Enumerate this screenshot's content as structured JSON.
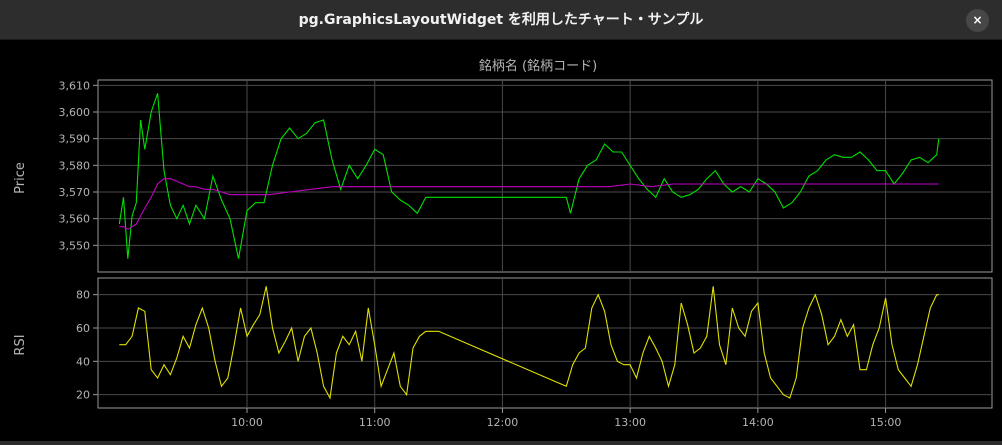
{
  "window": {
    "title": "pg.GraphicsLayoutWidget を利用したチャート・サンプル",
    "close_icon": "×"
  },
  "colors": {
    "background": "#000000",
    "price": "#00e000",
    "sma": "#c000c0",
    "rsi": "#e0e000",
    "grid": "#4a4a4a",
    "axis": "#9a9a9a"
  },
  "chart_data": [
    {
      "type": "line",
      "title": "銘柄名 (銘柄コード)",
      "ylabel": "Price",
      "ylim": [
        3540,
        3612
      ],
      "yticks": [
        "3,550",
        "3,560",
        "3,570",
        "3,580",
        "3,590",
        "3,600",
        "3,610"
      ],
      "grid": true,
      "series": [
        {
          "color": "#00e000",
          "x": [
            "09:00",
            "09:02",
            "09:04",
            "09:06",
            "09:08",
            "09:10",
            "09:12",
            "09:15",
            "09:18",
            "09:21",
            "09:24",
            "09:27",
            "09:30",
            "09:33",
            "09:36",
            "09:40",
            "09:44",
            "09:48",
            "09:52",
            "09:56",
            "10:00",
            "10:04",
            "10:08",
            "10:12",
            "10:16",
            "10:20",
            "10:24",
            "10:28",
            "10:32",
            "10:36",
            "10:40",
            "10:44",
            "10:48",
            "10:52",
            "10:56",
            "11:00",
            "11:04",
            "11:08",
            "11:12",
            "11:16",
            "11:20",
            "11:24",
            "11:28",
            "11:30",
            "12:30",
            "12:32",
            "12:36",
            "12:40",
            "12:44",
            "12:48",
            "12:52",
            "12:56",
            "13:00",
            "13:04",
            "13:08",
            "13:12",
            "13:16",
            "13:20",
            "13:24",
            "13:28",
            "13:32",
            "13:36",
            "13:40",
            "13:44",
            "13:48",
            "13:52",
            "13:56",
            "14:00",
            "14:04",
            "14:08",
            "14:12",
            "14:16",
            "14:20",
            "14:24",
            "14:28",
            "14:32",
            "14:36",
            "14:40",
            "14:44",
            "14:48",
            "14:52",
            "14:56",
            "15:00",
            "15:04",
            "15:08",
            "15:12",
            "15:16",
            "15:20",
            "15:24",
            "15:25"
          ],
          "y": [
            3558,
            3568,
            3545,
            3561,
            3566,
            3597,
            3586,
            3600,
            3607,
            3578,
            3565,
            3560,
            3565,
            3558,
            3565,
            3560,
            3576,
            3567,
            3560,
            3545,
            3563,
            3566,
            3566,
            3580,
            3590,
            3594,
            3590,
            3592,
            3596,
            3597,
            3582,
            3571,
            3580,
            3575,
            3580,
            3586,
            3584,
            3570,
            3567,
            3565,
            3562,
            3568,
            3568,
            3568,
            3568,
            3562,
            3575,
            3580,
            3582,
            3588,
            3585,
            3585,
            3580,
            3575,
            3571,
            3568,
            3575,
            3570,
            3568,
            3569,
            3571,
            3575,
            3578,
            3573,
            3570,
            3572,
            3570,
            3575,
            3573,
            3570,
            3564,
            3566,
            3570,
            3576,
            3578,
            3582,
            3584,
            3583,
            3583,
            3585,
            3582,
            3578,
            3578,
            3573,
            3577,
            3582,
            3583,
            3581,
            3584,
            3590
          ]
        },
        {
          "color": "#c000c0",
          "x": [
            "09:00",
            "09:02",
            "09:04",
            "09:06",
            "09:08",
            "09:10",
            "09:12",
            "09:15",
            "09:18",
            "09:21",
            "09:24",
            "09:27",
            "09:30",
            "09:33",
            "09:36",
            "09:40",
            "09:44",
            "09:48",
            "09:52",
            "09:56",
            "10:00",
            "10:10",
            "10:20",
            "10:30",
            "10:40",
            "10:50",
            "11:00",
            "11:10",
            "11:20",
            "11:30",
            "12:30",
            "12:40",
            "12:50",
            "13:00",
            "13:10",
            "13:20",
            "13:30",
            "13:40",
            "13:50",
            "14:00",
            "14:10",
            "14:20",
            "14:30",
            "14:40",
            "14:50",
            "15:00",
            "15:10",
            "15:20",
            "15:25"
          ],
          "y": [
            3557,
            3557,
            3556,
            3557,
            3558,
            3561,
            3564,
            3568,
            3573,
            3575,
            3575,
            3574,
            3573,
            3572,
            3572,
            3571,
            3571,
            3570,
            3569,
            3569,
            3569,
            3569,
            3570,
            3571,
            3572,
            3572,
            3572,
            3572,
            3572,
            3572,
            3572,
            3572,
            3572,
            3573,
            3572,
            3573,
            3573,
            3573,
            3573,
            3573,
            3573,
            3573,
            3573,
            3573,
            3573,
            3573,
            3573,
            3573,
            3573
          ]
        }
      ]
    },
    {
      "type": "line",
      "ylabel": "RSI",
      "ylim": [
        12,
        90
      ],
      "yticks": [
        "20",
        "40",
        "60",
        "80"
      ],
      "xticks": [
        "10:00",
        "11:00",
        "12:00",
        "13:00",
        "14:00",
        "15:00"
      ],
      "grid": true,
      "series": [
        {
          "color": "#e0e000",
          "x": [
            "09:00",
            "09:03",
            "09:06",
            "09:09",
            "09:12",
            "09:15",
            "09:18",
            "09:21",
            "09:24",
            "09:27",
            "09:30",
            "09:33",
            "09:36",
            "09:39",
            "09:42",
            "09:45",
            "09:48",
            "09:51",
            "09:54",
            "09:57",
            "10:00",
            "10:03",
            "10:06",
            "10:09",
            "10:12",
            "10:15",
            "10:18",
            "10:21",
            "10:24",
            "10:27",
            "10:30",
            "10:33",
            "10:36",
            "10:39",
            "10:42",
            "10:45",
            "10:48",
            "10:51",
            "10:54",
            "10:57",
            "11:00",
            "11:03",
            "11:06",
            "11:09",
            "11:12",
            "11:15",
            "11:18",
            "11:21",
            "11:24",
            "11:27",
            "11:30",
            "12:30",
            "12:33",
            "12:36",
            "12:39",
            "12:42",
            "12:45",
            "12:48",
            "12:51",
            "12:54",
            "12:57",
            "13:00",
            "13:03",
            "13:06",
            "13:09",
            "13:12",
            "13:15",
            "13:18",
            "13:21",
            "13:24",
            "13:27",
            "13:30",
            "13:33",
            "13:36",
            "13:39",
            "13:42",
            "13:45",
            "13:48",
            "13:51",
            "13:54",
            "13:57",
            "14:00",
            "14:03",
            "14:06",
            "14:09",
            "14:12",
            "14:15",
            "14:18",
            "14:21",
            "14:24",
            "14:27",
            "14:30",
            "14:33",
            "14:36",
            "14:39",
            "14:42",
            "14:45",
            "14:48",
            "14:51",
            "14:54",
            "14:57",
            "15:00",
            "15:03",
            "15:06",
            "15:09",
            "15:12",
            "15:15",
            "15:18",
            "15:21",
            "15:24",
            "15:25"
          ],
          "y": [
            50,
            50,
            55,
            72,
            70,
            35,
            30,
            38,
            32,
            42,
            55,
            48,
            62,
            72,
            60,
            40,
            25,
            30,
            50,
            72,
            55,
            62,
            68,
            85,
            60,
            45,
            52,
            60,
            40,
            55,
            60,
            45,
            25,
            18,
            45,
            55,
            50,
            58,
            40,
            72,
            50,
            25,
            35,
            45,
            25,
            20,
            48,
            55,
            58,
            58,
            58,
            25,
            38,
            45,
            48,
            72,
            80,
            70,
            50,
            40,
            38,
            38,
            30,
            45,
            55,
            48,
            40,
            25,
            38,
            75,
            62,
            45,
            48,
            55,
            85,
            50,
            38,
            72,
            60,
            55,
            70,
            75,
            45,
            30,
            25,
            20,
            18,
            30,
            60,
            72,
            80,
            68,
            50,
            55,
            65,
            55,
            62,
            35,
            35,
            50,
            60,
            78,
            50,
            35,
            30,
            25,
            38,
            55,
            72,
            80,
            80
          ]
        }
      ]
    }
  ]
}
